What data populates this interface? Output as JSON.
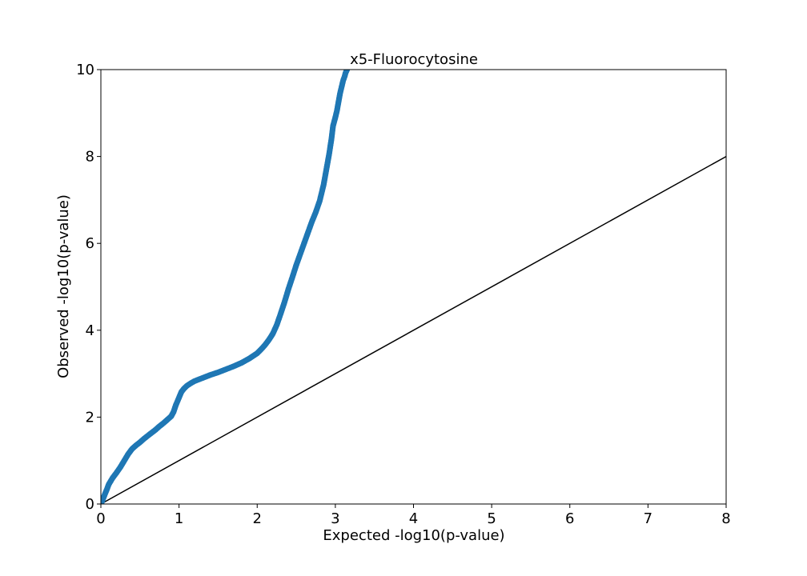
{
  "chart_data": {
    "type": "scatter",
    "title": "x5-Fluorocytosine",
    "xlabel": "Expected -log10(p-value)",
    "ylabel": "Observed -log10(p-value)",
    "xlim": [
      0,
      8
    ],
    "ylim": [
      0,
      10
    ],
    "xticks": [
      "0",
      "1",
      "2",
      "3",
      "4",
      "5",
      "6",
      "7",
      "8"
    ],
    "yticks": [
      "0",
      "2",
      "4",
      "6",
      "8",
      "10"
    ],
    "grid": false,
    "marker_color": "#1f77b4",
    "reference_line": {
      "x": [
        0,
        8
      ],
      "y": [
        0,
        8
      ],
      "color": "#000000"
    },
    "series": [
      {
        "x": [
          0.0,
          0.02,
          0.05,
          0.08,
          0.1,
          0.15,
          0.2,
          0.25,
          0.3,
          0.35,
          0.4,
          0.45,
          0.5,
          0.55,
          0.6,
          0.65,
          0.7,
          0.75,
          0.8,
          0.85,
          0.9,
          0.93,
          0.96,
          1.0,
          1.03,
          1.06,
          1.1,
          1.15,
          1.2,
          1.3,
          1.4,
          1.5,
          1.6,
          1.7,
          1.8,
          1.9,
          2.0,
          2.05,
          2.1,
          2.15,
          2.2,
          2.25,
          2.3,
          2.35,
          2.4,
          2.45,
          2.5,
          2.55,
          2.6,
          2.65,
          2.7,
          2.75,
          2.8,
          2.85,
          2.88,
          2.9,
          2.92,
          2.95,
          2.97,
          3.0,
          3.02,
          3.04,
          3.06,
          3.08,
          3.1,
          3.12,
          3.13,
          3.15
        ],
        "y": [
          0.0,
          0.08,
          0.22,
          0.35,
          0.45,
          0.6,
          0.72,
          0.85,
          1.0,
          1.15,
          1.27,
          1.35,
          1.42,
          1.5,
          1.57,
          1.64,
          1.71,
          1.79,
          1.86,
          1.94,
          2.02,
          2.12,
          2.28,
          2.45,
          2.58,
          2.65,
          2.72,
          2.78,
          2.83,
          2.9,
          2.97,
          3.03,
          3.1,
          3.17,
          3.25,
          3.35,
          3.47,
          3.56,
          3.66,
          3.78,
          3.92,
          4.12,
          4.38,
          4.65,
          4.95,
          5.22,
          5.5,
          5.75,
          6.0,
          6.25,
          6.5,
          6.72,
          6.98,
          7.35,
          7.65,
          7.85,
          8.05,
          8.4,
          8.7,
          8.9,
          9.05,
          9.25,
          9.45,
          9.6,
          9.75,
          9.85,
          9.92,
          10.0
        ]
      }
    ]
  }
}
